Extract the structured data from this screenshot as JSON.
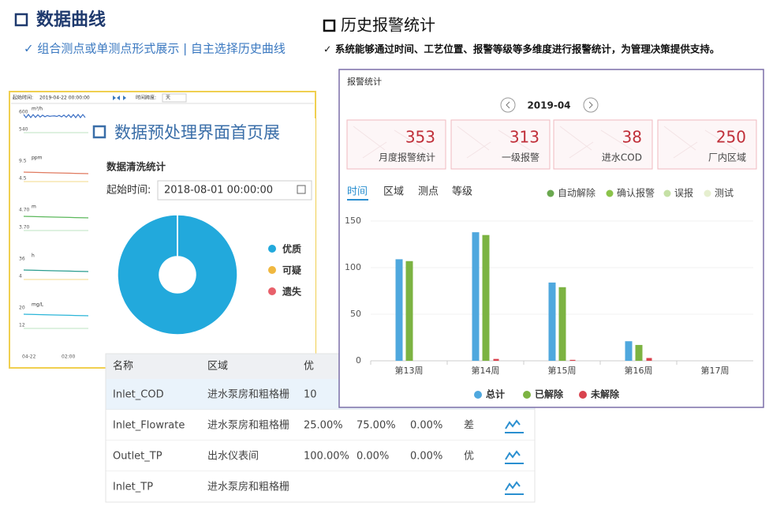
{
  "left": {
    "title": "数据曲线",
    "subtitle": "✓ 组合测点或单测点形式展示 | 自主选择历史曲线"
  },
  "right": {
    "title": "历史报警统计",
    "subtitle": "✓ 系统能够通过时间、工艺位置、报警等级等多维度进行报警统计，为管理决策提供支持。"
  },
  "curve_panel": {
    "start_label": "起始时间:",
    "start_value": "2019-04-22 00:00:00",
    "span_label": "时间跨度:",
    "span_value": "天",
    "strips": [
      {
        "unit": "m³/h",
        "ticks": [
          "600",
          "540"
        ],
        "color": "#3b6fc4"
      },
      {
        "unit": "ppm",
        "ticks": [
          "9.5",
          "4.5"
        ],
        "color": "#e07a5f"
      },
      {
        "unit": "m",
        "ticks": [
          "4.70",
          "3.70"
        ],
        "color": "#5cb85c"
      },
      {
        "unit": "h",
        "ticks": [
          "36",
          "4"
        ],
        "color": "#2a9d8f"
      },
      {
        "unit": "mg/L",
        "ticks": [
          "20",
          "12"
        ],
        "color": "#2bb5d8"
      }
    ],
    "x_labels": [
      "04-22",
      "02:00"
    ]
  },
  "preprocess": {
    "title": "数据预处理界面首页展",
    "card_title": "数据清洗统计",
    "start_label": "起始时间:",
    "start_value": "2018-08-01 00:00:00",
    "chart_data": {
      "type": "donut",
      "categories": [
        "优质",
        "可疑",
        "遗失"
      ],
      "values": [
        100,
        0,
        0
      ],
      "colors": [
        "#22a9dc",
        "#f0b840",
        "#e8606a"
      ]
    }
  },
  "table": {
    "headers": [
      "名称",
      "区域",
      "优"
    ],
    "rows": [
      [
        "Inlet_COD",
        "进水泵房和粗格栅",
        "10"
      ],
      [
        "Inlet_Flowrate",
        "进水泵房和粗格栅",
        "25.00%",
        "75.00%",
        "0.00%",
        "差"
      ],
      [
        "Outlet_TP",
        "出水仪表间",
        "100.00%",
        "0.00%",
        "0.00%",
        "优"
      ],
      [
        "Inlet_TP",
        "进水泵房和粗格栅"
      ]
    ]
  },
  "alarm": {
    "panel_title": "报警统计",
    "month": "2019-04",
    "stats": [
      {
        "value": 353,
        "label": "月度报警统计"
      },
      {
        "value": 313,
        "label": "一级报警"
      },
      {
        "value": 38,
        "label": "进水COD"
      },
      {
        "value": 250,
        "label": "厂内区域"
      }
    ],
    "tabs": [
      "时间",
      "区域",
      "测点",
      "等级"
    ],
    "filters": [
      {
        "name": "自动解除",
        "color": "#6aa84f"
      },
      {
        "name": "确认报警",
        "color": "#8bc34a"
      },
      {
        "name": "误报",
        "color": "#c5e0a5"
      },
      {
        "name": "测试",
        "color": "#e6efcf"
      }
    ],
    "chart_data": {
      "type": "bar",
      "categories": [
        "第13周",
        "第14周",
        "第15周",
        "第16周",
        "第17周"
      ],
      "series": [
        {
          "name": "总计",
          "color": "#4fa8de",
          "values": [
            109,
            138,
            84,
            21,
            null
          ]
        },
        {
          "name": "已解除",
          "color": "#7cb342",
          "values": [
            107,
            135,
            79,
            17,
            null
          ]
        },
        {
          "name": "未解除",
          "color": "#d9434e",
          "values": [
            0,
            2,
            1,
            3,
            null
          ]
        }
      ],
      "ylim": [
        0,
        150
      ],
      "yticks": [
        0,
        50,
        100,
        150
      ],
      "grid": true
    }
  }
}
